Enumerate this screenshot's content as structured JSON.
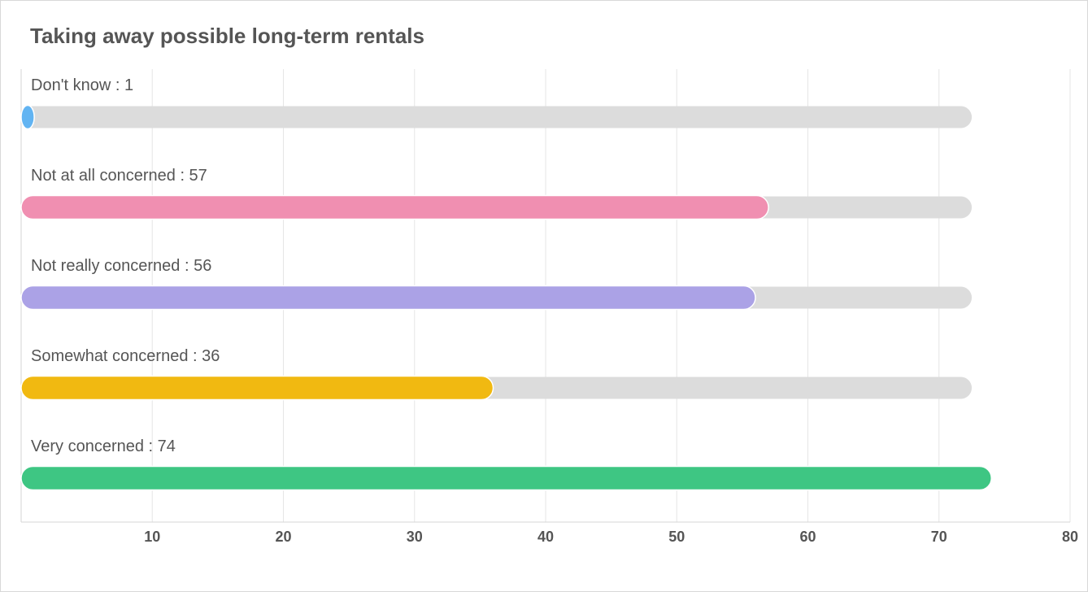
{
  "chart_data": {
    "type": "bar",
    "orientation": "horizontal",
    "title": "Taking away possible long-term rentals",
    "xlabel": "",
    "ylabel": "",
    "xlim": [
      0,
      80
    ],
    "xticks": [
      10,
      20,
      30,
      40,
      50,
      60,
      70,
      80
    ],
    "grid": true,
    "legend": "none",
    "background_track_value": 72.5,
    "separator": " : ",
    "categories": [
      "Don't know",
      "Not at all concerned",
      "Not really concerned",
      "Somewhat concerned",
      "Very concerned"
    ],
    "values": [
      1,
      57,
      56,
      36,
      74
    ],
    "colors": [
      "#62b4f2",
      "#f08fb1",
      "#aba2e6",
      "#f1b911",
      "#3ec683"
    ],
    "track_color": "#dcdcdc",
    "grid_color": "#e6e6e6"
  }
}
